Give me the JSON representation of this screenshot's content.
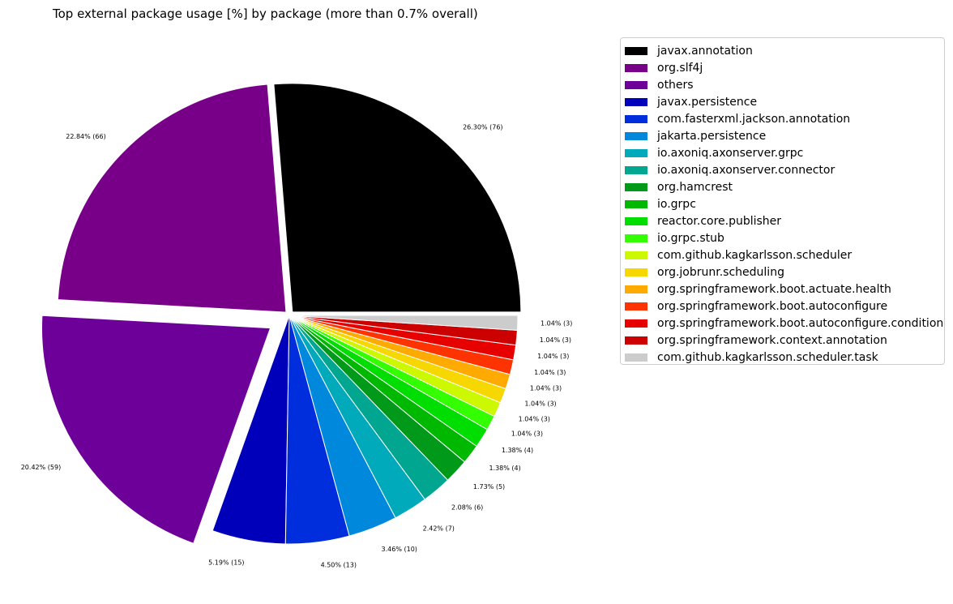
{
  "chart_data": {
    "type": "pie",
    "title": "Top external package usage [%] by package (more than 0.7% overall)",
    "legend_position": "upper-right (outside)",
    "slices": [
      {
        "name": "javax.annotation",
        "percent": 26.3,
        "count": 76,
        "label": "26.30% (76)",
        "color": "#000000",
        "explode": false
      },
      {
        "name": "org.slf4j",
        "percent": 22.84,
        "count": 66,
        "label": "22.84% (66)",
        "color": "#780088",
        "explode": false
      },
      {
        "name": "others",
        "percent": 20.42,
        "count": 59,
        "label": "20.42% (59)",
        "color": "#6e009a",
        "explode": true
      },
      {
        "name": "javax.persistence",
        "percent": 5.19,
        "count": 15,
        "label": "5.19% (15)",
        "color": "#0000bb",
        "explode": false
      },
      {
        "name": "com.fasterxml.jackson.annotation",
        "percent": 4.5,
        "count": 13,
        "label": "4.50% (13)",
        "color": "#002edd",
        "explode": false
      },
      {
        "name": "jakarta.persistence",
        "percent": 3.46,
        "count": 10,
        "label": "3.46% (10)",
        "color": "#0088dd",
        "explode": false
      },
      {
        "name": "io.axoniq.axonserver.grpc",
        "percent": 2.42,
        "count": 7,
        "label": "2.42% (7)",
        "color": "#00aabb",
        "explode": false
      },
      {
        "name": "io.axoniq.axonserver.connector",
        "percent": 2.08,
        "count": 6,
        "label": "2.08% (6)",
        "color": "#00a690",
        "explode": false
      },
      {
        "name": "org.hamcrest",
        "percent": 1.73,
        "count": 5,
        "label": "1.73% (5)",
        "color": "#00991a",
        "explode": false
      },
      {
        "name": "io.grpc",
        "percent": 1.38,
        "count": 4,
        "label": "1.38% (4)",
        "color": "#00b800",
        "explode": false
      },
      {
        "name": "reactor.core.publisher",
        "percent": 1.38,
        "count": 4,
        "label": "1.38% (4)",
        "color": "#00dd00",
        "explode": false
      },
      {
        "name": "io.grpc.stub",
        "percent": 1.04,
        "count": 3,
        "label": "1.04% (3)",
        "color": "#33ff00",
        "explode": false
      },
      {
        "name": "com.github.kagkarlsson.scheduler",
        "percent": 1.04,
        "count": 3,
        "label": "1.04% (3)",
        "color": "#ccf800",
        "explode": false
      },
      {
        "name": "org.jobrunr.scheduling",
        "percent": 1.04,
        "count": 3,
        "label": "1.04% (3)",
        "color": "#f6d700",
        "explode": false
      },
      {
        "name": "org.springframework.boot.actuate.health",
        "percent": 1.04,
        "count": 3,
        "label": "1.04% (3)",
        "color": "#ffaa00",
        "explode": false
      },
      {
        "name": "org.springframework.boot.autoconfigure",
        "percent": 1.04,
        "count": 3,
        "label": "1.04% (3)",
        "color": "#ff3300",
        "explode": false
      },
      {
        "name": "org.springframework.boot.autoconfigure.condition",
        "percent": 1.04,
        "count": 3,
        "label": "1.04% (3)",
        "color": "#e60000",
        "explode": false
      },
      {
        "name": "org.springframework.context.annotation",
        "percent": 1.04,
        "count": 3,
        "label": "1.04% (3)",
        "color": "#cc0000",
        "explode": false
      },
      {
        "name": "com.github.kagkarlsson.scheduler.task",
        "percent": 1.04,
        "count": 3,
        "label": "1.04% (3)",
        "color": "#cccccc",
        "explode": false
      }
    ]
  }
}
